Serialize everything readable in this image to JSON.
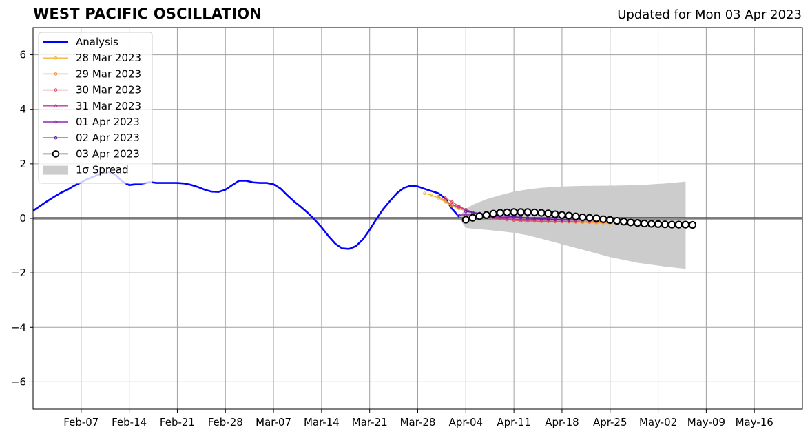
{
  "header": {
    "title": "WEST PACIFIC OSCILLATION",
    "updated": "Updated for Mon 03 Apr 2023"
  },
  "chart_data": {
    "type": "line",
    "title": "WEST PACIFIC OSCILLATION",
    "xlabel": "",
    "ylabel": "",
    "x_range": [
      "2023-01-31",
      "2023-05-23"
    ],
    "ylim": [
      -7,
      7
    ],
    "grid": true,
    "legend_position": "top-left",
    "x_ticks": [
      "Feb-07",
      "Feb-14",
      "Feb-21",
      "Feb-28",
      "Mar-07",
      "Mar-14",
      "Mar-21",
      "Mar-28",
      "Apr-04",
      "Apr-11",
      "Apr-18",
      "Apr-25",
      "May-02",
      "May-09",
      "May-16"
    ],
    "x_tick_dates": [
      "2023-02-07",
      "2023-02-14",
      "2023-02-21",
      "2023-02-28",
      "2023-03-07",
      "2023-03-14",
      "2023-03-21",
      "2023-03-28",
      "2023-04-04",
      "2023-04-11",
      "2023-04-18",
      "2023-04-25",
      "2023-05-02",
      "2023-05-09",
      "2023-05-16"
    ],
    "y_ticks": [
      6,
      4,
      2,
      0,
      -2,
      -4,
      -6
    ],
    "y_tick_labels": [
      "6",
      "4",
      "2",
      "0",
      "−2",
      "−4",
      "−6"
    ],
    "analysis": {
      "name": "Analysis",
      "color": "#0000ff",
      "points": [
        [
          "2023-01-31",
          0.28
        ],
        [
          "2023-02-01",
          0.45
        ],
        [
          "2023-02-02",
          0.62
        ],
        [
          "2023-02-03",
          0.78
        ],
        [
          "2023-02-04",
          0.93
        ],
        [
          "2023-02-05",
          1.05
        ],
        [
          "2023-02-06",
          1.2
        ],
        [
          "2023-02-07",
          1.32
        ],
        [
          "2023-02-08",
          1.45
        ],
        [
          "2023-02-09",
          1.55
        ],
        [
          "2023-02-10",
          1.65
        ],
        [
          "2023-02-11",
          1.7
        ],
        [
          "2023-02-12",
          1.6
        ],
        [
          "2023-02-13",
          1.35
        ],
        [
          "2023-02-14",
          1.22
        ],
        [
          "2023-02-15",
          1.25
        ],
        [
          "2023-02-16",
          1.28
        ],
        [
          "2023-02-17",
          1.33
        ],
        [
          "2023-02-18",
          1.3
        ],
        [
          "2023-02-19",
          1.3
        ],
        [
          "2023-02-20",
          1.3
        ],
        [
          "2023-02-21",
          1.3
        ],
        [
          "2023-02-22",
          1.28
        ],
        [
          "2023-02-23",
          1.23
        ],
        [
          "2023-02-24",
          1.15
        ],
        [
          "2023-02-25",
          1.05
        ],
        [
          "2023-02-26",
          0.98
        ],
        [
          "2023-02-27",
          0.97
        ],
        [
          "2023-02-28",
          1.05
        ],
        [
          "2023-03-01",
          1.22
        ],
        [
          "2023-03-02",
          1.38
        ],
        [
          "2023-03-03",
          1.38
        ],
        [
          "2023-03-04",
          1.32
        ],
        [
          "2023-03-05",
          1.3
        ],
        [
          "2023-03-06",
          1.3
        ],
        [
          "2023-03-07",
          1.25
        ],
        [
          "2023-03-08",
          1.1
        ],
        [
          "2023-03-09",
          0.85
        ],
        [
          "2023-03-10",
          0.62
        ],
        [
          "2023-03-11",
          0.42
        ],
        [
          "2023-03-12",
          0.2
        ],
        [
          "2023-03-13",
          -0.05
        ],
        [
          "2023-03-14",
          -0.33
        ],
        [
          "2023-03-15",
          -0.65
        ],
        [
          "2023-03-16",
          -0.93
        ],
        [
          "2023-03-17",
          -1.1
        ],
        [
          "2023-03-18",
          -1.12
        ],
        [
          "2023-03-19",
          -1.02
        ],
        [
          "2023-03-20",
          -0.78
        ],
        [
          "2023-03-21",
          -0.42
        ],
        [
          "2023-03-22",
          -0.02
        ],
        [
          "2023-03-23",
          0.35
        ],
        [
          "2023-03-24",
          0.65
        ],
        [
          "2023-03-25",
          0.93
        ],
        [
          "2023-03-26",
          1.12
        ],
        [
          "2023-03-27",
          1.2
        ],
        [
          "2023-03-28",
          1.17
        ],
        [
          "2023-03-29",
          1.08
        ],
        [
          "2023-03-30",
          1.0
        ],
        [
          "2023-03-31",
          0.92
        ],
        [
          "2023-04-01",
          0.73
        ],
        [
          "2023-04-02",
          0.35
        ],
        [
          "2023-04-03",
          0.06
        ]
      ]
    },
    "spread": {
      "name": "1σ Spread",
      "color": "#cccccc",
      "points": [
        [
          "2023-04-03",
          0.0,
          0.05
        ],
        [
          "2023-04-04",
          -0.35,
          0.35
        ],
        [
          "2023-04-05",
          -0.38,
          0.5
        ],
        [
          "2023-04-07",
          -0.42,
          0.7
        ],
        [
          "2023-04-09",
          -0.47,
          0.85
        ],
        [
          "2023-04-11",
          -0.53,
          0.98
        ],
        [
          "2023-04-13",
          -0.62,
          1.06
        ],
        [
          "2023-04-15",
          -0.75,
          1.12
        ],
        [
          "2023-04-18",
          -0.95,
          1.17
        ],
        [
          "2023-04-21",
          -1.15,
          1.19
        ],
        [
          "2023-04-25",
          -1.42,
          1.2
        ],
        [
          "2023-04-29",
          -1.63,
          1.22
        ],
        [
          "2023-05-03",
          -1.77,
          1.28
        ],
        [
          "2023-05-06",
          -1.85,
          1.35
        ]
      ]
    },
    "forecasts": [
      {
        "name": "28 Mar 2023",
        "color": "#f5b531",
        "start": "2023-03-29",
        "values": [
          0.92,
          0.85,
          0.75,
          0.6,
          0.45,
          0.35,
          0.28,
          0.22,
          0.15,
          0.1,
          0.05,
          0.0,
          -0.03,
          -0.06,
          -0.08,
          -0.1,
          -0.1,
          -0.12,
          -0.12,
          -0.13,
          -0.13,
          -0.14,
          -0.15,
          -0.15,
          -0.16,
          -0.17,
          -0.17,
          -0.18
        ]
      },
      {
        "name": "29 Mar 2023",
        "color": "#f08c3a",
        "start": "2023-03-31",
        "values": [
          0.8,
          0.65,
          0.5,
          0.38,
          0.28,
          0.2,
          0.14,
          0.08,
          0.03,
          -0.01,
          -0.04,
          -0.07,
          -0.08,
          -0.09,
          -0.1,
          -0.1,
          -0.11,
          -0.11,
          -0.12,
          -0.12,
          -0.13,
          -0.13,
          -0.14,
          -0.14,
          -0.15,
          -0.15
        ]
      },
      {
        "name": "30 Mar 2023",
        "color": "#e0526e",
        "start": "2023-04-01",
        "values": [
          0.75,
          0.6,
          0.45,
          0.32,
          0.22,
          0.14,
          0.08,
          0.03,
          -0.02,
          -0.05,
          -0.07,
          -0.09,
          -0.1,
          -0.1,
          -0.11,
          -0.11,
          -0.12,
          -0.12,
          -0.12,
          -0.12,
          -0.13,
          -0.13,
          -0.13,
          -0.13
        ]
      },
      {
        "name": "31 Mar 2023",
        "color": "#b83b9a",
        "start": "2023-04-02",
        "values": [
          0.5,
          0.42,
          0.32,
          0.22,
          0.14,
          0.08,
          0.03,
          0.0,
          -0.02,
          -0.03,
          -0.04,
          -0.05,
          -0.05,
          -0.06,
          -0.06,
          -0.06,
          -0.07,
          -0.07,
          -0.07,
          -0.07,
          -0.07,
          -0.07
        ]
      },
      {
        "name": "01 Apr 2023",
        "color": "#8e2ab0",
        "start": "2023-04-03",
        "values": [
          0.12,
          0.13,
          0.12,
          0.1,
          0.08,
          0.06,
          0.05,
          0.04,
          0.03,
          0.02,
          0.01,
          0.0,
          -0.01,
          -0.02,
          -0.03,
          -0.04,
          -0.05,
          -0.06
        ]
      },
      {
        "name": "02 Apr 2023",
        "color": "#5a1fa0",
        "start": "2023-04-04",
        "values": [
          0.25,
          0.22,
          0.18,
          0.15,
          0.12,
          0.1,
          0.08,
          0.06,
          0.04,
          0.02,
          0.0,
          -0.02,
          -0.03,
          -0.04,
          -0.05,
          -0.06
        ]
      }
    ],
    "forecast_today": {
      "name": "03 Apr 2023",
      "color": "#000000",
      "start": "2023-04-04",
      "values": [
        -0.05,
        0.02,
        0.08,
        0.12,
        0.17,
        0.2,
        0.22,
        0.23,
        0.23,
        0.23,
        0.22,
        0.2,
        0.18,
        0.15,
        0.12,
        0.1,
        0.07,
        0.04,
        0.02,
        0.0,
        -0.03,
        -0.06,
        -0.09,
        -0.12,
        -0.15,
        -0.17,
        -0.19,
        -0.2,
        -0.21,
        -0.22,
        -0.23,
        -0.23,
        -0.23,
        -0.24
      ]
    },
    "legend": [
      "Analysis",
      "28 Mar 2023",
      "29 Mar 2023",
      "30 Mar 2023",
      "31 Mar 2023",
      "01 Apr 2023",
      "02 Apr 2023",
      "03 Apr 2023",
      "1σ Spread"
    ]
  }
}
